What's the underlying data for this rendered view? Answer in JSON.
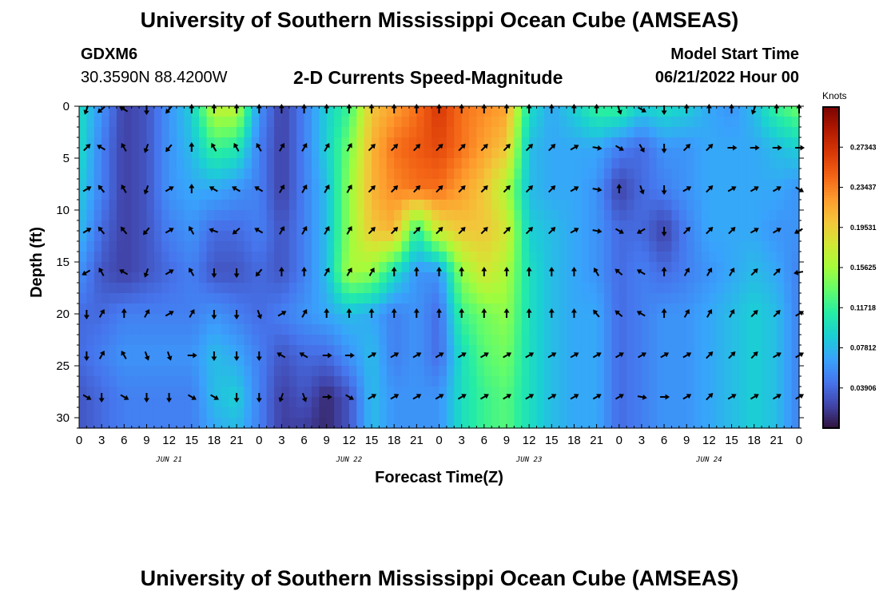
{
  "header": {
    "title": "University of Southern Mississippi Ocean Cube (AMSEAS)",
    "station_id": "GDXM6",
    "station_coords": "30.3590N  88.4200W",
    "subtitle": "2-D Currents Speed-Magnitude",
    "start_label": "Model Start Time",
    "start_value": "06/21/2022 Hour 00"
  },
  "footer": {
    "title": "University of Southern Mississippi Ocean Cube (AMSEAS)"
  },
  "chart_data": {
    "type": "heatmap",
    "xlabel": "Forecast Time(Z)",
    "ylabel": "Depth (ft)",
    "x_range_hours": [
      0,
      96
    ],
    "y_range_ft": [
      0,
      31
    ],
    "y_inverted": true,
    "x_tick_labels": [
      "0",
      "3",
      "6",
      "9",
      "12",
      "15",
      "18",
      "21",
      "0",
      "3",
      "6",
      "9",
      "12",
      "15",
      "18",
      "21",
      "0",
      "3",
      "6",
      "9",
      "12",
      "15",
      "18",
      "21",
      "0",
      "3",
      "6",
      "9",
      "12",
      "15",
      "18",
      "21",
      "0"
    ],
    "y_ticks": [
      0,
      5,
      10,
      15,
      20,
      25,
      30
    ],
    "day_labels": [
      {
        "text": "JUN 21",
        "hour": 12
      },
      {
        "text": "JUN 22",
        "hour": 36
      },
      {
        "text": "JUN 23",
        "hour": 60
      },
      {
        "text": "JUN 24",
        "hour": 84
      }
    ],
    "colorbar": {
      "unit": "Knots",
      "range": [
        0,
        0.3125
      ],
      "labels": [
        "0.27343",
        "0.23437",
        "0.19531",
        "0.15625",
        "0.11718",
        "0.07812",
        "0.03906"
      ],
      "label_values": [
        0.27343,
        0.23437,
        0.19531,
        0.15625,
        0.11718,
        0.07812,
        0.03906
      ],
      "colormap": [
        "#30123b",
        "#4145ab",
        "#4675ed",
        "#39a2fc",
        "#1bcfd4",
        "#24eca6",
        "#61fc6c",
        "#a4fc3b",
        "#d1e834",
        "#f3c63a",
        "#fe9b2d",
        "#f36315",
        "#d93806",
        "#b11901",
        "#7a0402"
      ]
    },
    "speed_grid": {
      "x_hours": [
        0,
        3,
        6,
        9,
        12,
        15,
        18,
        21,
        24,
        27,
        30,
        33,
        36,
        39,
        42,
        45,
        48,
        51,
        54,
        57,
        60,
        63,
        66,
        69,
        72,
        75,
        78,
        81,
        84,
        87,
        90,
        93,
        96
      ],
      "depth_ft": [
        0,
        4,
        8,
        12,
        16,
        20,
        24,
        28,
        31
      ],
      "values": [
        [
          0.1,
          0.06,
          0.02,
          0.03,
          0.06,
          0.09,
          0.17,
          0.17,
          0.06,
          0.02,
          0.05,
          0.09,
          0.12,
          0.2,
          0.22,
          0.24,
          0.27,
          0.24,
          0.23,
          0.22,
          0.1,
          0.07,
          0.09,
          0.12,
          0.12,
          0.09,
          0.1,
          0.09,
          0.07,
          0.06,
          0.08,
          0.12,
          0.14
        ],
        [
          0.1,
          0.05,
          0.02,
          0.03,
          0.06,
          0.08,
          0.12,
          0.11,
          0.05,
          0.02,
          0.05,
          0.09,
          0.14,
          0.21,
          0.24,
          0.25,
          0.26,
          0.24,
          0.22,
          0.2,
          0.08,
          0.07,
          0.07,
          0.07,
          0.05,
          0.04,
          0.06,
          0.06,
          0.07,
          0.07,
          0.07,
          0.08,
          0.09
        ],
        [
          0.09,
          0.05,
          0.02,
          0.03,
          0.06,
          0.07,
          0.07,
          0.06,
          0.05,
          0.02,
          0.05,
          0.08,
          0.15,
          0.21,
          0.23,
          0.24,
          0.24,
          0.22,
          0.2,
          0.16,
          0.08,
          0.07,
          0.07,
          0.06,
          0.02,
          0.04,
          0.05,
          0.06,
          0.07,
          0.07,
          0.07,
          0.07,
          0.06
        ],
        [
          0.08,
          0.04,
          0.02,
          0.03,
          0.05,
          0.06,
          0.04,
          0.04,
          0.05,
          0.03,
          0.05,
          0.08,
          0.15,
          0.2,
          0.21,
          0.11,
          0.18,
          0.2,
          0.2,
          0.18,
          0.09,
          0.08,
          0.07,
          0.06,
          0.04,
          0.04,
          0.02,
          0.05,
          0.07,
          0.07,
          0.07,
          0.06,
          0.06
        ],
        [
          0.06,
          0.03,
          0.02,
          0.03,
          0.04,
          0.05,
          0.03,
          0.03,
          0.04,
          0.03,
          0.05,
          0.08,
          0.16,
          0.15,
          0.1,
          0.06,
          0.06,
          0.15,
          0.18,
          0.16,
          0.1,
          0.08,
          0.07,
          0.06,
          0.04,
          0.05,
          0.04,
          0.05,
          0.06,
          0.07,
          0.08,
          0.07,
          0.05
        ],
        [
          0.04,
          0.04,
          0.05,
          0.05,
          0.05,
          0.05,
          0.06,
          0.05,
          0.04,
          0.05,
          0.06,
          0.07,
          0.08,
          0.07,
          0.05,
          0.06,
          0.04,
          0.12,
          0.14,
          0.15,
          0.1,
          0.08,
          0.07,
          0.07,
          0.04,
          0.05,
          0.06,
          0.06,
          0.07,
          0.08,
          0.09,
          0.08,
          0.05
        ],
        [
          0.04,
          0.05,
          0.06,
          0.06,
          0.06,
          0.06,
          0.08,
          0.07,
          0.05,
          0.03,
          0.04,
          0.04,
          0.06,
          0.08,
          0.05,
          0.06,
          0.04,
          0.1,
          0.13,
          0.14,
          0.1,
          0.08,
          0.07,
          0.07,
          0.04,
          0.05,
          0.06,
          0.06,
          0.07,
          0.08,
          0.09,
          0.08,
          0.05
        ],
        [
          0.03,
          0.04,
          0.05,
          0.05,
          0.05,
          0.05,
          0.08,
          0.09,
          0.05,
          0.02,
          0.03,
          0.01,
          0.03,
          0.08,
          0.06,
          0.06,
          0.06,
          0.1,
          0.12,
          0.13,
          0.1,
          0.08,
          0.07,
          0.07,
          0.04,
          0.05,
          0.06,
          0.06,
          0.07,
          0.08,
          0.09,
          0.08,
          0.05
        ],
        [
          0.03,
          0.04,
          0.05,
          0.05,
          0.05,
          0.05,
          0.07,
          0.08,
          0.05,
          0.02,
          0.02,
          0.01,
          0.03,
          0.08,
          0.06,
          0.06,
          0.06,
          0.1,
          0.12,
          0.13,
          0.1,
          0.08,
          0.07,
          0.07,
          0.04,
          0.05,
          0.06,
          0.06,
          0.07,
          0.08,
          0.09,
          0.08,
          0.05
        ]
      ]
    },
    "vectors": {
      "depth_ft": [
        0,
        4,
        8,
        12,
        16,
        20,
        24,
        28
      ],
      "hours_with_arrows": [
        1,
        3,
        6,
        9,
        12,
        15,
        18,
        21,
        24,
        27,
        30,
        33,
        36,
        39,
        42,
        45,
        48,
        51,
        54,
        57,
        60,
        63,
        66,
        69,
        72,
        75,
        78,
        81,
        84,
        87,
        90,
        93,
        96
      ],
      "direction_deg_by_depth": [
        [
          200,
          230,
          300,
          180,
          220,
          0,
          0,
          0,
          0,
          0,
          0,
          0,
          0,
          0,
          0,
          0,
          0,
          0,
          0,
          0,
          0,
          0,
          0,
          0,
          160,
          120,
          180,
          0,
          0,
          0,
          200,
          0,
          0
        ],
        [
          45,
          300,
          330,
          200,
          220,
          0,
          330,
          330,
          330,
          30,
          30,
          30,
          30,
          45,
          45,
          45,
          45,
          45,
          45,
          45,
          45,
          45,
          60,
          100,
          120,
          150,
          180,
          45,
          45,
          90,
          90,
          90,
          90
        ],
        [
          60,
          320,
          330,
          200,
          60,
          0,
          300,
          300,
          300,
          30,
          30,
          30,
          30,
          45,
          45,
          45,
          45,
          45,
          45,
          45,
          45,
          45,
          60,
          100,
          0,
          160,
          180,
          60,
          45,
          60,
          60,
          60,
          120
        ],
        [
          60,
          320,
          320,
          220,
          60,
          330,
          290,
          230,
          300,
          30,
          30,
          30,
          30,
          45,
          45,
          45,
          45,
          45,
          45,
          45,
          45,
          45,
          60,
          100,
          120,
          240,
          180,
          45,
          45,
          45,
          60,
          60,
          240
        ],
        [
          240,
          330,
          300,
          200,
          60,
          330,
          180,
          180,
          220,
          0,
          0,
          30,
          30,
          30,
          0,
          0,
          0,
          0,
          0,
          0,
          0,
          0,
          0,
          330,
          310,
          300,
          0,
          30,
          30,
          30,
          45,
          45,
          260
        ],
        [
          180,
          30,
          0,
          30,
          60,
          30,
          180,
          180,
          160,
          60,
          30,
          0,
          0,
          0,
          0,
          0,
          0,
          0,
          0,
          0,
          0,
          0,
          0,
          320,
          310,
          300,
          0,
          30,
          30,
          30,
          45,
          45,
          60
        ],
        [
          180,
          30,
          330,
          160,
          160,
          90,
          180,
          180,
          180,
          300,
          300,
          90,
          90,
          60,
          60,
          60,
          60,
          60,
          60,
          60,
          60,
          60,
          60,
          60,
          60,
          60,
          60,
          60,
          45,
          45,
          45,
          60,
          60
        ],
        [
          120,
          180,
          120,
          180,
          180,
          120,
          120,
          180,
          180,
          200,
          160,
          90,
          120,
          60,
          60,
          60,
          60,
          60,
          60,
          60,
          60,
          60,
          60,
          60,
          60,
          100,
          90,
          60,
          45,
          60,
          60,
          60,
          60
        ]
      ]
    }
  }
}
